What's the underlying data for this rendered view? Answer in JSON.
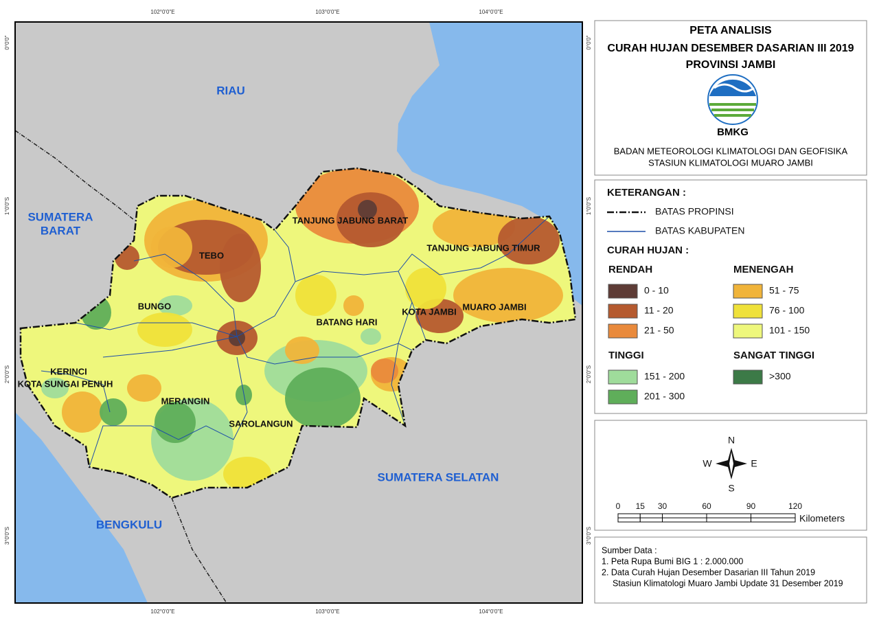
{
  "map": {
    "grid_labels": {
      "top": [
        "102°0'0\"E",
        "103°0'0\"E",
        "104°0'0\"E"
      ],
      "bottom": [
        "102°0'0\"E",
        "103°0'0\"E",
        "104°0'0\"E"
      ],
      "left": [
        "0°0'0\"",
        "1°0'0\"S",
        "2°0'0\"S",
        "3°0'0\"S"
      ],
      "right": [
        "0°0'0\"",
        "1°0'0\"S",
        "2°0'0\"S",
        "3°0'0\"S"
      ]
    },
    "regions": {
      "riau": "RIAU",
      "sumatera_barat": [
        "SUMATERA",
        "BARAT"
      ],
      "sumatera_selatan": "SUMATERA SELATAN",
      "bengkulu": "BENGKULU"
    },
    "districts": [
      "TEBO",
      "BUNGO",
      "TANJUNG JABUNG BARAT",
      "TANJUNG JABUNG TIMUR",
      "KOTA JAMBI",
      "MUARO JAMBI",
      "BATANG HARI",
      "KERINCI",
      "KOTA SUNGAI PENUH",
      "MERANGIN",
      "SAROLANGUN"
    ]
  },
  "title": {
    "lines": [
      "PETA ANALISIS",
      "CURAH HUJAN DESEMBER DASARIAN III 2019",
      "PROVINSI JAMBI"
    ],
    "logo": "BMKG",
    "agency": [
      "BADAN METEOROLOGI KLIMATOLOGI DAN GEOFISIKA",
      "STASIUN KLIMATOLOGI MUARO JAMBI"
    ]
  },
  "legend": {
    "heading": "KETERANGAN :",
    "lines": [
      "BATAS PROPINSI",
      "BATAS KABUPATEN"
    ],
    "rainfall_heading": "CURAH HUJAN :",
    "groups": [
      {
        "name": "RENDAH",
        "items": [
          {
            "label": "0 - 10",
            "color": "#5e3c36"
          },
          {
            "label": "11 - 20",
            "color": "#b55a2f"
          },
          {
            "label": "21 - 50",
            "color": "#e98a3c"
          }
        ]
      },
      {
        "name": "MENENGAH",
        "items": [
          {
            "label": "51 - 75",
            "color": "#f0b43a"
          },
          {
            "label": "76 - 100",
            "color": "#efe13a"
          },
          {
            "label": "101 - 150",
            "color": "#eef77c"
          }
        ]
      },
      {
        "name": "TINGGI",
        "items": [
          {
            "label": "151 - 200",
            "color": "#9fdc9b"
          },
          {
            "label": "201 - 300",
            "color": "#5fae5a"
          }
        ]
      },
      {
        "name": "SANGAT TINGGI",
        "items": [
          {
            "label": ">300",
            "color": "#3c7a47"
          }
        ]
      }
    ]
  },
  "compass": {
    "n": "N",
    "e": "E",
    "s": "S",
    "w": "W"
  },
  "scale": {
    "ticks": [
      0,
      15,
      30,
      60,
      90,
      120
    ],
    "unit": "Kilometers"
  },
  "source": {
    "heading": "Sumber Data :",
    "lines": [
      "1. Peta Rupa Bumi BIG 1 : 2.000.000",
      "2. Data Curah Hujan Desember Dasarian III Tahun 2019",
      "Stasiun Klimatologi Muaro Jambi Update 31 Desember 2019"
    ]
  }
}
